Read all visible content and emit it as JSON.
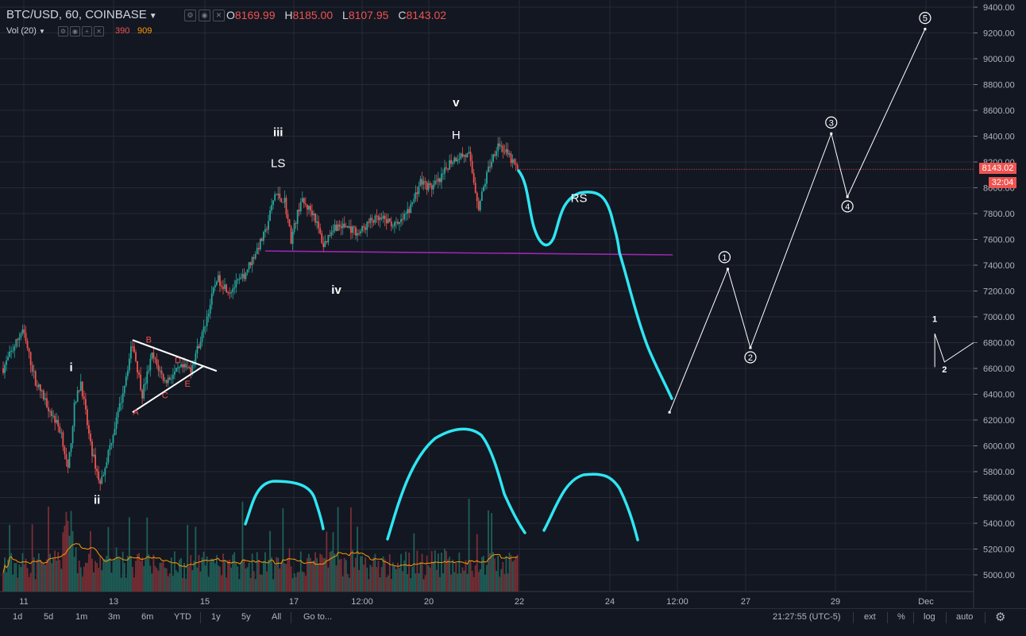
{
  "header": {
    "symbol": "BTC/USD, 60, COINBASE",
    "ohlc": [
      {
        "k": "O",
        "v": "8169.99"
      },
      {
        "k": "H",
        "v": "8185.00"
      },
      {
        "k": "L",
        "v": "8107.95"
      },
      {
        "k": "C",
        "v": "8143.02"
      }
    ],
    "volume_label": "Vol (20)",
    "volume_value": "390",
    "volume_ma": "909"
  },
  "price_badge": "8143.02",
  "countdown_badge": "32:04",
  "colors": {
    "background": "#131722",
    "up": "#26a69a",
    "down": "#ef5350",
    "annotation_cyan": "#2ee6f2",
    "neckline": "#9c27b0",
    "volume_ma": "#ff9800"
  },
  "bottom_bar": {
    "ranges": [
      "1d",
      "5d",
      "1m",
      "3m",
      "6m",
      "YTD",
      "1y",
      "5y",
      "All"
    ],
    "goto": "Go to...",
    "time": "21:27:55 (UTC-5)",
    "options": [
      "ext",
      "%",
      "log",
      "auto"
    ],
    "settings_icon": "gear-icon"
  },
  "chart_data": {
    "type": "candlestick",
    "symbol": "BTC/USD",
    "interval": "60",
    "exchange": "COINBASE",
    "y_axis_ticks": [
      "9400.00",
      "9200.00",
      "9000.00",
      "8800.00",
      "8600.00",
      "8400.00",
      "8200.00",
      "8000.00",
      "7800.00",
      "7600.00",
      "7400.00",
      "7200.00",
      "7000.00",
      "6800.00",
      "6600.00",
      "6400.00",
      "6200.00",
      "6000.00",
      "5800.00",
      "5600.00",
      "5400.00",
      "5200.00",
      "5000.00"
    ],
    "ylim": [
      4900,
      9500
    ],
    "x_axis_ticks": [
      "11",
      "13",
      "15",
      "17",
      "12:00",
      "20",
      "22",
      "24",
      "12:00",
      "27",
      "29",
      "Dec"
    ],
    "price_anchors": [
      {
        "t": 0,
        "p": 6600
      },
      {
        "t": 2,
        "p": 6700
      },
      {
        "t": 6,
        "p": 6900
      },
      {
        "t": 10,
        "p": 6500
      },
      {
        "t": 14,
        "p": 6300
      },
      {
        "t": 18,
        "p": 6100
      },
      {
        "t": 20,
        "p": 5800
      },
      {
        "t": 22,
        "p": 6300
      },
      {
        "t": 24,
        "p": 6500
      },
      {
        "t": 27,
        "p": 6000
      },
      {
        "t": 30,
        "p": 5700
      },
      {
        "t": 33,
        "p": 6000
      },
      {
        "t": 36,
        "p": 6300
      },
      {
        "t": 40,
        "p": 6800
      },
      {
        "t": 43,
        "p": 6400
      },
      {
        "t": 46,
        "p": 6700
      },
      {
        "t": 50,
        "p": 6500
      },
      {
        "t": 55,
        "p": 6600
      },
      {
        "t": 58,
        "p": 6600
      },
      {
        "t": 62,
        "p": 6900
      },
      {
        "t": 66,
        "p": 7300
      },
      {
        "t": 70,
        "p": 7200
      },
      {
        "t": 74,
        "p": 7300
      },
      {
        "t": 78,
        "p": 7500
      },
      {
        "t": 81,
        "p": 7650
      },
      {
        "t": 84,
        "p": 7950
      },
      {
        "t": 87,
        "p": 7900
      },
      {
        "t": 89,
        "p": 7600
      },
      {
        "t": 92,
        "p": 7900
      },
      {
        "t": 96,
        "p": 7800
      },
      {
        "t": 99,
        "p": 7550
      },
      {
        "t": 102,
        "p": 7700
      },
      {
        "t": 106,
        "p": 7700
      },
      {
        "t": 110,
        "p": 7650
      },
      {
        "t": 114,
        "p": 7750
      },
      {
        "t": 118,
        "p": 7750
      },
      {
        "t": 122,
        "p": 7700
      },
      {
        "t": 126,
        "p": 7850
      },
      {
        "t": 129,
        "p": 8050
      },
      {
        "t": 132,
        "p": 8000
      },
      {
        "t": 135,
        "p": 8050
      },
      {
        "t": 138,
        "p": 8200
      },
      {
        "t": 141,
        "p": 8250
      },
      {
        "t": 144,
        "p": 8250
      },
      {
        "t": 147,
        "p": 7850
      },
      {
        "t": 150,
        "p": 8150
      },
      {
        "t": 153,
        "p": 8350
      },
      {
        "t": 156,
        "p": 8250
      },
      {
        "t": 159,
        "p": 8143
      }
    ],
    "volume_ylim": [
      0,
      1400
    ],
    "annotations": {
      "wave_labels": [
        {
          "text": "i",
          "t": 21,
          "p": 6580
        },
        {
          "text": "ii",
          "t": 29,
          "p": 5550
        },
        {
          "text": "iii",
          "t": 85,
          "p": 8400
        },
        {
          "text": "LS",
          "t": 85,
          "p": 8160
        },
        {
          "text": "iv",
          "t": 103,
          "p": 7180
        },
        {
          "text": "v",
          "t": 140,
          "p": 8630
        },
        {
          "text": "H",
          "t": 140,
          "p": 8380
        },
        {
          "text": "RS",
          "t": 178,
          "p": 7890
        }
      ],
      "triangle_labels": [
        {
          "text": "A",
          "t": 41,
          "p": 6240
        },
        {
          "text": "B",
          "t": 45,
          "p": 6800
        },
        {
          "text": "C",
          "t": 50,
          "p": 6370
        },
        {
          "text": "D",
          "t": 54,
          "p": 6640
        },
        {
          "text": "E",
          "t": 57,
          "p": 6460
        }
      ],
      "neckline": {
        "t1": 81,
        "p1": 7510,
        "t2": 207,
        "p2": 7480
      },
      "projection_counts": [
        "1",
        "2",
        "3",
        "4",
        "5"
      ],
      "projection_path": [
        {
          "t": 206,
          "p": 6260,
          "n": ""
        },
        {
          "t": 224,
          "p": 7370,
          "n": "1"
        },
        {
          "t": 231,
          "p": 6760,
          "n": "2"
        },
        {
          "t": 256,
          "p": 8420,
          "n": "3"
        },
        {
          "t": 261,
          "p": 7930,
          "n": "4"
        },
        {
          "t": 285,
          "p": 9230,
          "n": "5"
        }
      ],
      "small_counts": [
        {
          "text": "1",
          "t": 288,
          "p": 6960
        },
        {
          "text": "2",
          "t": 291,
          "p": 6570
        }
      ]
    }
  }
}
